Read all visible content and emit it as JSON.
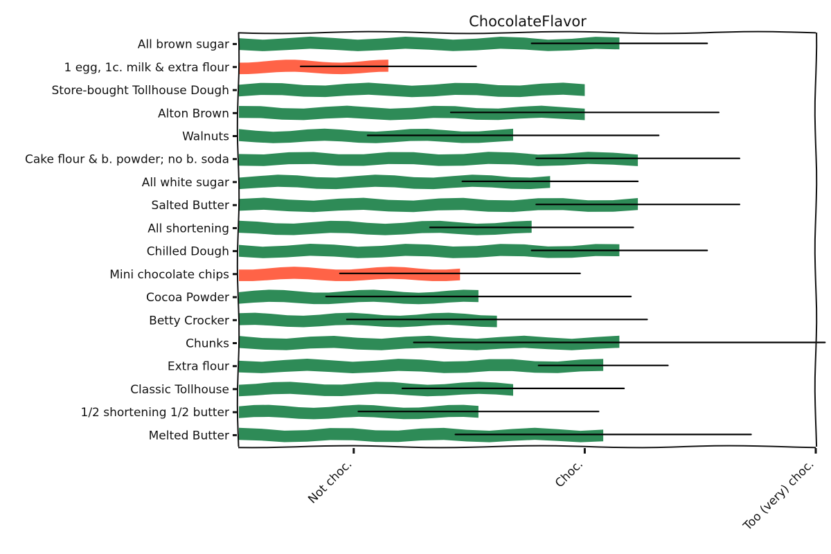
{
  "chart_data": {
    "type": "bar",
    "orientation": "horizontal",
    "title": "ChocolateFlavor",
    "xlabel": "",
    "ylabel": "",
    "xlim": [
      0.5,
      3.0
    ],
    "xticks": [
      {
        "value": 1,
        "label": "Not choc."
      },
      {
        "value": 2,
        "label": "Choc."
      },
      {
        "value": 3,
        "label": "Too (very) choc."
      }
    ],
    "grid": false,
    "legend": "none",
    "colors": {
      "normal": "#2e8b57",
      "highlight": "#ff6347",
      "error_bar": "#000000"
    },
    "categories": [
      "All brown sugar",
      "1 egg, 1c. milk & extra flour",
      "Store-bought Tollhouse Dough",
      "Alton Brown",
      "Walnuts",
      "Cake flour & b. powder; no b. soda",
      "All white sugar",
      "Salted Butter",
      "All shortening",
      "Chilled Dough",
      "Mini chocolate chips",
      "Cocoa Powder",
      "Betty Crocker",
      "Chunks",
      "Extra flour",
      "Classic Tollhouse",
      "1/2 shortening 1/2 butter",
      "Melted Butter"
    ],
    "values": [
      2.15,
      1.15,
      2.0,
      2.0,
      1.69,
      2.23,
      1.85,
      2.23,
      1.77,
      2.15,
      1.46,
      1.54,
      1.62,
      2.15,
      2.08,
      1.69,
      1.54,
      2.08
    ],
    "error": [
      0.38,
      0.38,
      0.0,
      0.58,
      0.63,
      0.44,
      0.38,
      0.44,
      0.44,
      0.38,
      0.52,
      0.66,
      0.65,
      0.89,
      0.28,
      0.48,
      0.52,
      0.64
    ],
    "highlighted": [
      "1 egg, 1c. milk & extra flour",
      "Mini chocolate chips"
    ]
  }
}
